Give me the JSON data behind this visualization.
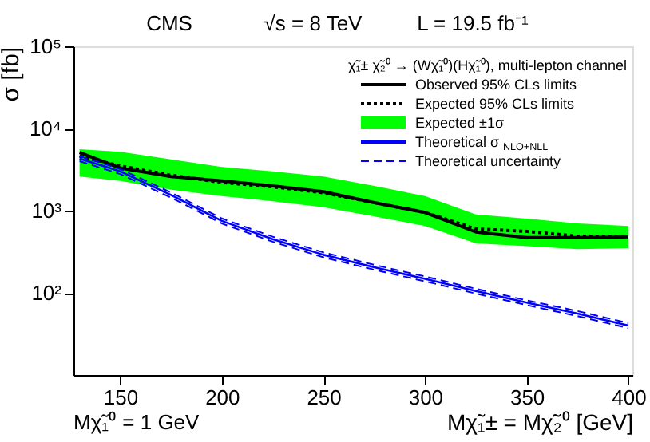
{
  "chart_data": {
    "type": "line",
    "title": "CMS",
    "ylabel": "σ [fb]",
    "xlabel": "Mχ̃₁± = Mχ̃₂⁰ [GeV]",
    "legend_title": "χ̃₁± χ̃₂⁰ → (Wχ̃₁⁰)(Hχ̃₁⁰), multi-lepton channel",
    "annotations": [
      "√s = 8 TeV",
      "L = 19.5 fb⁻¹",
      "Mχ̃₁⁰ = 1 GeV"
    ],
    "x": [
      130,
      150,
      175,
      200,
      225,
      250,
      275,
      300,
      325,
      350,
      375,
      400
    ],
    "series": [
      {
        "name": "Observed 95% CLs limits",
        "color": "#000000",
        "line_style": "solid",
        "values": [
          5100,
          3300,
          2600,
          2300,
          2000,
          1700,
          1250,
          950,
          550,
          470,
          470,
          480
        ]
      },
      {
        "name": "Expected 95% CLs limits",
        "color": "#000000",
        "line_style": "dotted",
        "values": [
          4600,
          3500,
          2700,
          2200,
          1950,
          1650,
          1250,
          950,
          600,
          560,
          490,
          480
        ]
      },
      {
        "name": "Expected ±1σ",
        "color": "#00ff00",
        "values": [
          null,
          null,
          null,
          null,
          null,
          null,
          null,
          null,
          null,
          null,
          null,
          null
        ],
        "lower": [
          2600,
          2300,
          1800,
          1500,
          1300,
          1100,
          850,
          650,
          400,
          370,
          340,
          350
        ],
        "upper": [
          5600,
          5200,
          4200,
          3400,
          3000,
          2600,
          2000,
          1500,
          900,
          800,
          700,
          650
        ]
      },
      {
        "name": "Theoretical σ$_{NLO+NLL}$",
        "color": "#0000ff",
        "line_style": "solid",
        "values": [
          4300,
          3000,
          1550,
          750,
          450,
          290,
          205,
          148,
          105,
          76,
          56,
          40
        ]
      },
      {
        "name": "Theoretical uncertainty",
        "color": "#0000ff",
        "line_style": "dashed",
        "values": [
          4600,
          3210,
          1660,
          803,
          482,
          310,
          219,
          158,
          112,
          81,
          60,
          42.8
        ]
      },
      {
        "color": "#0000ff",
        "line_style": "dashed",
        "values": [
          4000,
          2790,
          1440,
          698,
          419,
          270,
          191,
          138,
          98,
          71,
          52,
          37.2
        ]
      }
    ],
    "xlim": [
      127,
      402
    ],
    "xticks": [
      150,
      200,
      250,
      300,
      350,
      400
    ],
    "ylim": [
      10,
      100000
    ],
    "log": true,
    "yticks": [
      {
        "value": 100,
        "label": "10²"
      },
      {
        "value": 1000,
        "label": "10³"
      },
      {
        "value": 10000,
        "label": "10⁴"
      },
      {
        "value": 100000,
        "label": "10⁵"
      }
    ],
    "grid": false,
    "legend": "top right",
    "marker": "none"
  }
}
